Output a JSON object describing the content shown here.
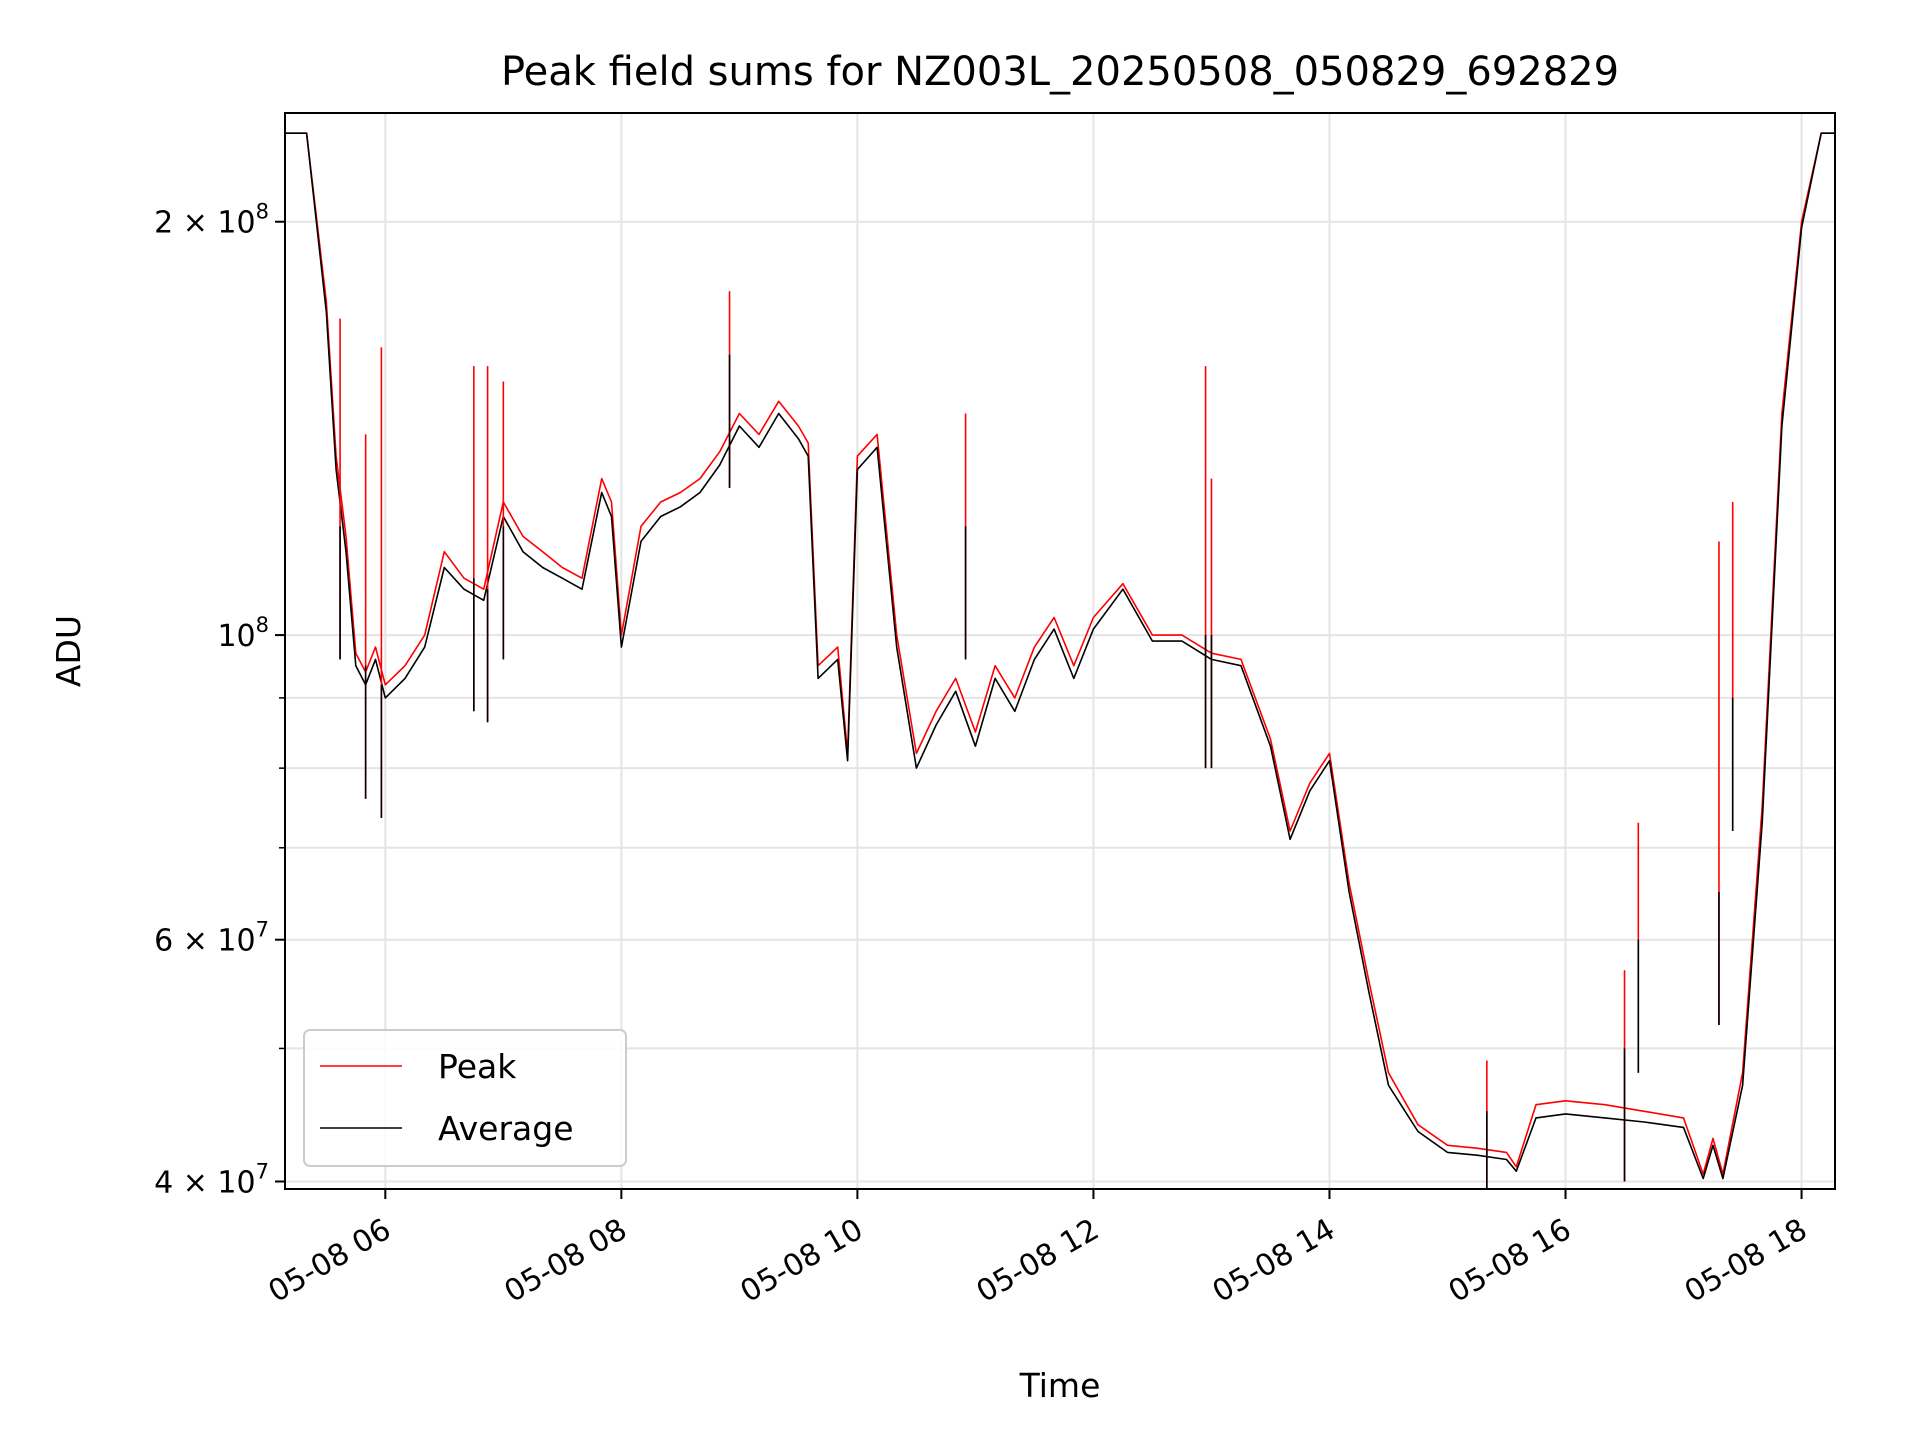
{
  "chart_data": {
    "type": "line",
    "title": "Peak field sums for NZ003L_20250508_050829_692829",
    "xlabel": "Time",
    "ylabel": "ADU",
    "yscale": "log",
    "ylim": [
      39500000,
      240000000
    ],
    "xlim": [
      "05-08 05:09",
      "05-08 18:17"
    ],
    "grid": true,
    "legend_position": "lower-left",
    "x_ticks": [
      "05-08 06",
      "05-08 08",
      "05-08 10",
      "05-08 12",
      "05-08 14",
      "05-08 16",
      "05-08 18"
    ],
    "y_major_ticks": [
      {
        "value": 40000000,
        "mantissa": "4",
        "exponent": "7"
      },
      {
        "value": 60000000,
        "mantissa": "6",
        "exponent": "7"
      },
      {
        "value": 100000000,
        "mantissa": "",
        "exponent": "8"
      },
      {
        "value": 200000000,
        "mantissa": "2",
        "exponent": "8"
      }
    ],
    "y_minor_ticks": [
      50000000,
      70000000,
      80000000,
      90000000,
      300000000
    ],
    "series": [
      {
        "name": "Peak",
        "color": "#ff0000",
        "x": [
          "05-08 05:09",
          "05-08 05:20",
          "05-08 05:30",
          "05-08 05:35",
          "05-08 05:40",
          "05-08 05:45",
          "05-08 05:50",
          "05-08 05:55",
          "05-08 06:00",
          "05-08 06:10",
          "05-08 06:20",
          "05-08 06:30",
          "05-08 06:40",
          "05-08 06:50",
          "05-08 07:00",
          "05-08 07:10",
          "05-08 07:20",
          "05-08 07:30",
          "05-08 07:40",
          "05-08 07:50",
          "05-08 07:55",
          "05-08 08:00",
          "05-08 08:10",
          "05-08 08:20",
          "05-08 08:30",
          "05-08 08:40",
          "05-08 08:50",
          "05-08 09:00",
          "05-08 09:10",
          "05-08 09:20",
          "05-08 09:30",
          "05-08 09:35",
          "05-08 09:40",
          "05-08 09:50",
          "05-08 09:55",
          "05-08 10:00",
          "05-08 10:10",
          "05-08 10:20",
          "05-08 10:30",
          "05-08 10:40",
          "05-08 10:50",
          "05-08 11:00",
          "05-08 11:10",
          "05-08 11:20",
          "05-08 11:30",
          "05-08 11:40",
          "05-08 11:50",
          "05-08 12:00",
          "05-08 12:15",
          "05-08 12:30",
          "05-08 12:45",
          "05-08 13:00",
          "05-08 13:15",
          "05-08 13:30",
          "05-08 13:40",
          "05-08 13:50",
          "05-08 14:00",
          "05-08 14:10",
          "05-08 14:20",
          "05-08 14:30",
          "05-08 14:45",
          "05-08 15:00",
          "05-08 15:15",
          "05-08 15:30",
          "05-08 15:35",
          "05-08 15:45",
          "05-08 16:00",
          "05-08 16:20",
          "05-08 16:40",
          "05-08 17:00",
          "05-08 17:10",
          "05-08 17:15",
          "05-08 17:20",
          "05-08 17:30",
          "05-08 17:40",
          "05-08 17:50",
          "05-08 18:00",
          "05-08 18:10",
          "05-08 18:17"
        ],
        "values": [
          232000000,
          232000000,
          175000000,
          135000000,
          118000000,
          97000000,
          94000000,
          98000000,
          92000000,
          95000000,
          100000000,
          115000000,
          110000000,
          108000000,
          125000000,
          118000000,
          115000000,
          112000000,
          110000000,
          130000000,
          125000000,
          100000000,
          120000000,
          125000000,
          127000000,
          130000000,
          136000000,
          145000000,
          140000000,
          148000000,
          142000000,
          138000000,
          95000000,
          98000000,
          82000000,
          135000000,
          140000000,
          100000000,
          82000000,
          88000000,
          93000000,
          85000000,
          95000000,
          90000000,
          98000000,
          103000000,
          95000000,
          103000000,
          109000000,
          100000000,
          100000000,
          97000000,
          96000000,
          84000000,
          72000000,
          78000000,
          82000000,
          66000000,
          56000000,
          48000000,
          44000000,
          42500000,
          42300000,
          42000000,
          41000000,
          45500000,
          45800000,
          45500000,
          45000000,
          44500000,
          40500000,
          43000000,
          40500000,
          48000000,
          75000000,
          145000000,
          200000000,
          232000000,
          232000000
        ]
      },
      {
        "name": "Average",
        "color": "#000000",
        "x": [
          "05-08 05:09",
          "05-08 05:20",
          "05-08 05:30",
          "05-08 05:35",
          "05-08 05:40",
          "05-08 05:45",
          "05-08 05:50",
          "05-08 05:55",
          "05-08 06:00",
          "05-08 06:10",
          "05-08 06:20",
          "05-08 06:30",
          "05-08 06:40",
          "05-08 06:50",
          "05-08 07:00",
          "05-08 07:10",
          "05-08 07:20",
          "05-08 07:30",
          "05-08 07:40",
          "05-08 07:50",
          "05-08 07:55",
          "05-08 08:00",
          "05-08 08:10",
          "05-08 08:20",
          "05-08 08:30",
          "05-08 08:40",
          "05-08 08:50",
          "05-08 09:00",
          "05-08 09:10",
          "05-08 09:20",
          "05-08 09:30",
          "05-08 09:35",
          "05-08 09:40",
          "05-08 09:50",
          "05-08 09:55",
          "05-08 10:00",
          "05-08 10:10",
          "05-08 10:20",
          "05-08 10:30",
          "05-08 10:40",
          "05-08 10:50",
          "05-08 11:00",
          "05-08 11:10",
          "05-08 11:20",
          "05-08 11:30",
          "05-08 11:40",
          "05-08 11:50",
          "05-08 12:00",
          "05-08 12:15",
          "05-08 12:30",
          "05-08 12:45",
          "05-08 13:00",
          "05-08 13:15",
          "05-08 13:30",
          "05-08 13:40",
          "05-08 13:50",
          "05-08 14:00",
          "05-08 14:10",
          "05-08 14:20",
          "05-08 14:30",
          "05-08 14:45",
          "05-08 15:00",
          "05-08 15:15",
          "05-08 15:30",
          "05-08 15:35",
          "05-08 15:45",
          "05-08 16:00",
          "05-08 16:20",
          "05-08 16:40",
          "05-08 17:00",
          "05-08 17:10",
          "05-08 17:15",
          "05-08 17:20",
          "05-08 17:30",
          "05-08 17:40",
          "05-08 17:50",
          "05-08 18:00",
          "05-08 18:10",
          "05-08 18:17"
        ],
        "values": [
          232000000,
          232000000,
          172000000,
          132000000,
          115000000,
          95000000,
          92000000,
          96000000,
          90000000,
          93000000,
          98000000,
          112000000,
          108000000,
          106000000,
          122000000,
          115000000,
          112000000,
          110000000,
          108000000,
          127000000,
          122000000,
          98000000,
          117000000,
          122000000,
          124000000,
          127000000,
          133000000,
          142000000,
          137000000,
          145000000,
          139000000,
          135000000,
          93000000,
          96000000,
          81000000,
          132000000,
          137000000,
          98000000,
          80000000,
          86000000,
          91000000,
          83000000,
          93000000,
          88000000,
          96000000,
          101000000,
          93000000,
          101000000,
          108000000,
          99000000,
          99000000,
          96000000,
          95000000,
          83000000,
          71000000,
          77000000,
          81000000,
          65000000,
          55000000,
          47000000,
          43500000,
          42000000,
          41800000,
          41500000,
          40700000,
          44500000,
          44800000,
          44500000,
          44200000,
          43800000,
          40200000,
          42500000,
          40200000,
          47000000,
          73000000,
          142000000,
          198000000,
          232000000,
          232000000
        ]
      }
    ],
    "spikes": [
      {
        "x": "05-08 05:37",
        "peak": 170000000,
        "average": 120000000
      },
      {
        "x": "05-08 05:50",
        "peak": 140000000,
        "average": 95000000
      },
      {
        "x": "05-08 05:58",
        "peak": 162000000,
        "average": 92000000
      },
      {
        "x": "05-08 06:45",
        "peak": 157000000,
        "average": 110000000
      },
      {
        "x": "05-08 06:52",
        "peak": 157000000,
        "average": 108000000
      },
      {
        "x": "05-08 07:00",
        "peak": 153000000,
        "average": 120000000
      },
      {
        "x": "05-08 08:55",
        "peak": 178000000,
        "average": 160000000
      },
      {
        "x": "05-08 10:55",
        "peak": 145000000,
        "average": 120000000
      },
      {
        "x": "05-08 12:57",
        "peak": 157000000,
        "average": 100000000
      },
      {
        "x": "05-08 13:00",
        "peak": 130000000,
        "average": 100000000
      },
      {
        "x": "05-08 15:20",
        "peak": 49000000,
        "average": 45000000
      },
      {
        "x": "05-08 16:30",
        "peak": 57000000,
        "average": 50000000
      },
      {
        "x": "05-08 16:37",
        "peak": 73000000,
        "average": 60000000
      },
      {
        "x": "05-08 17:18",
        "peak": 117000000,
        "average": 65000000
      },
      {
        "x": "05-08 17:25",
        "peak": 125000000,
        "average": 90000000
      }
    ]
  }
}
